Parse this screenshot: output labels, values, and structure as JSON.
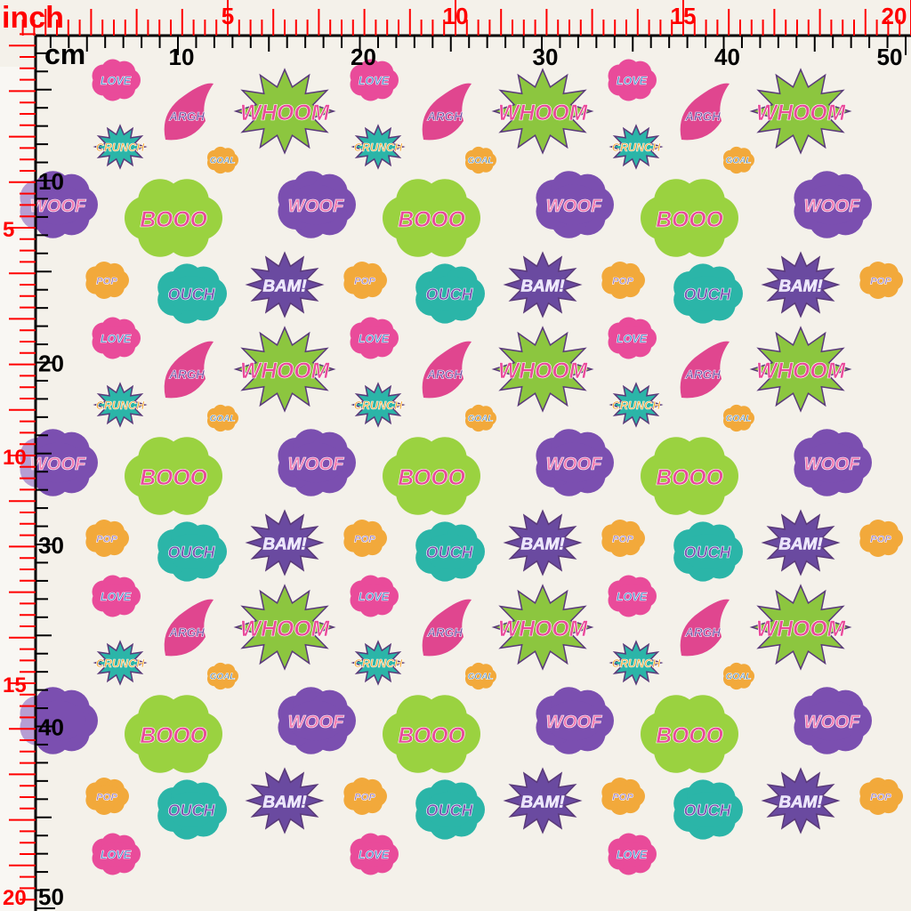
{
  "rulers": {
    "inch_label": "inch",
    "cm_label": "cm",
    "inch_top_labels": [
      "5",
      "10",
      "15",
      "20"
    ],
    "cm_top_labels": [
      "10",
      "20",
      "30",
      "40",
      "50"
    ],
    "inch_left_labels": [
      "5",
      "10",
      "15",
      "20"
    ],
    "cm_left_labels": [
      "10",
      "20",
      "30",
      "40",
      "50"
    ],
    "inch_color": "#ff0000",
    "cm_color": "#000000"
  },
  "pattern": {
    "background": "#f4f1ea",
    "stickers": [
      {
        "label": "LOVE",
        "color": "#e94b9a",
        "text_color": "#3a7fc4"
      },
      {
        "label": "ARGH",
        "color": "#e0468f",
        "text_color": "#6b4aa0"
      },
      {
        "label": "WHOOM",
        "color": "#8cc63f",
        "text_color": "#e94b9a"
      },
      {
        "label": "GOAL",
        "color": "#f2a93b",
        "text_color": "#2f6fb0"
      },
      {
        "label": "CRUNCH",
        "color": "#2bb5a8",
        "text_color": "#f2a93b"
      },
      {
        "label": "BOOO",
        "color": "#9ad240",
        "text_color": "#e94b9a"
      },
      {
        "label": "WOOF",
        "color": "#7b4fb0",
        "text_color": "#f07ab0"
      },
      {
        "label": "POP",
        "color": "#f2a93b",
        "text_color": "#8a6fc0"
      },
      {
        "label": "OUCH",
        "color": "#2bb5a8",
        "text_color": "#7b4fb0"
      },
      {
        "label": "BAM!",
        "color": "#6a4aa0",
        "text_color": "#e8e0ff"
      }
    ]
  }
}
